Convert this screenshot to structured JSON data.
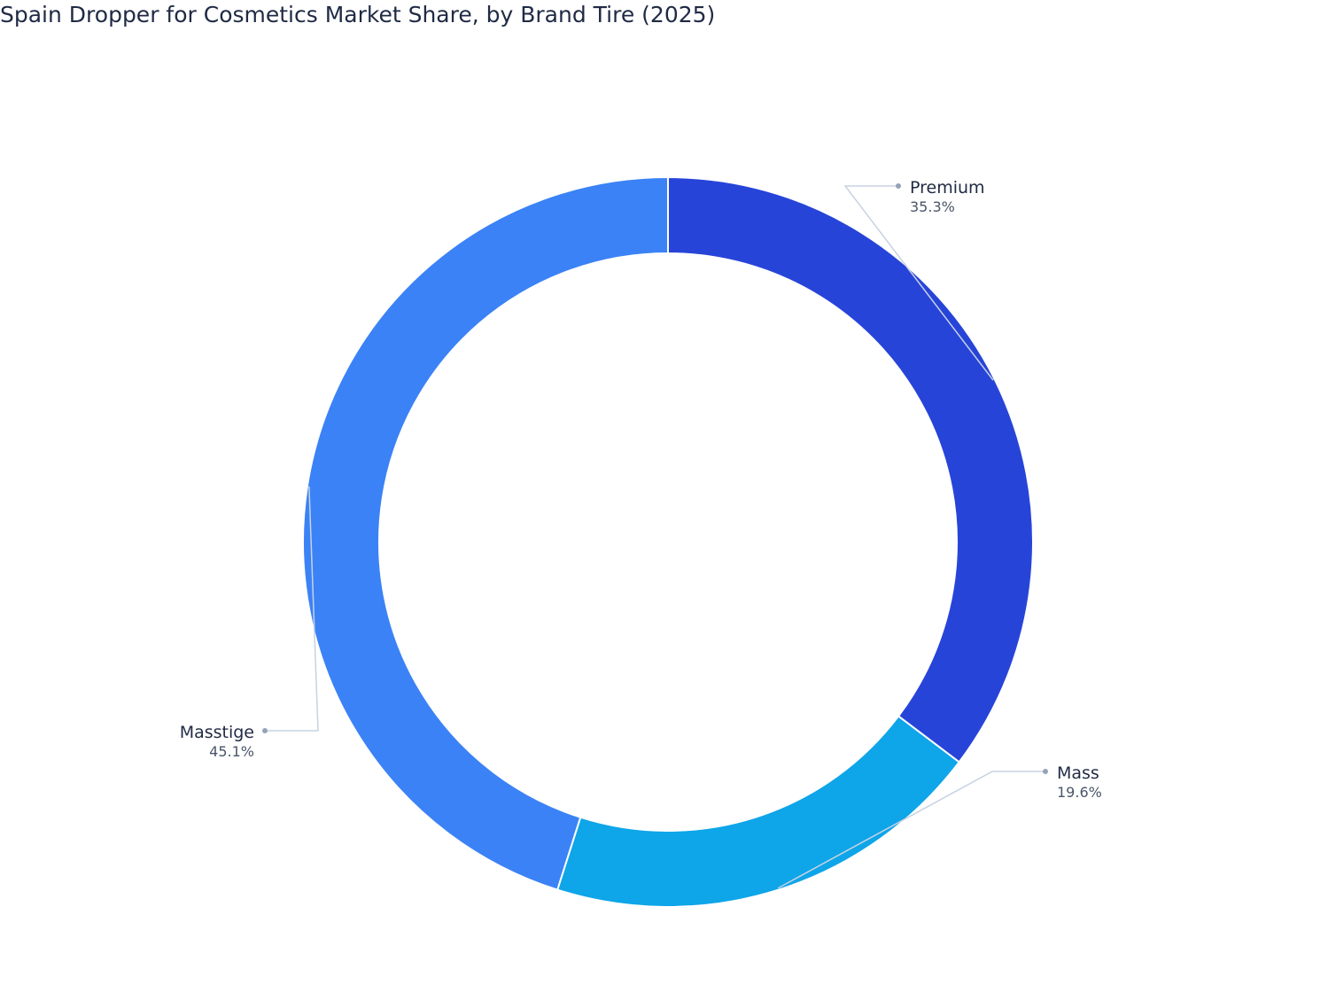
{
  "title": "Spain Dropper for Cosmetics Market Share, by Brand Tire (2025)",
  "chart_data": {
    "type": "pie",
    "hole": true,
    "title": "Spain Dropper for Cosmetics Market Share, by Brand Tire (2025)",
    "slices": [
      {
        "label": "Premium",
        "value": 35.3,
        "value_label": "35.3%",
        "color": "#2744d9"
      },
      {
        "label": "Mass",
        "value": 19.6,
        "value_label": "19.6%",
        "color": "#0ea5e9"
      },
      {
        "label": "Masstige",
        "value": 45.1,
        "value_label": "45.1%",
        "color": "#3b82f6"
      }
    ],
    "legend": "none"
  },
  "colors": {
    "leader_line": "#c7d2e2",
    "leader_dot": "#94a3b8",
    "separator": "#ffffff"
  }
}
